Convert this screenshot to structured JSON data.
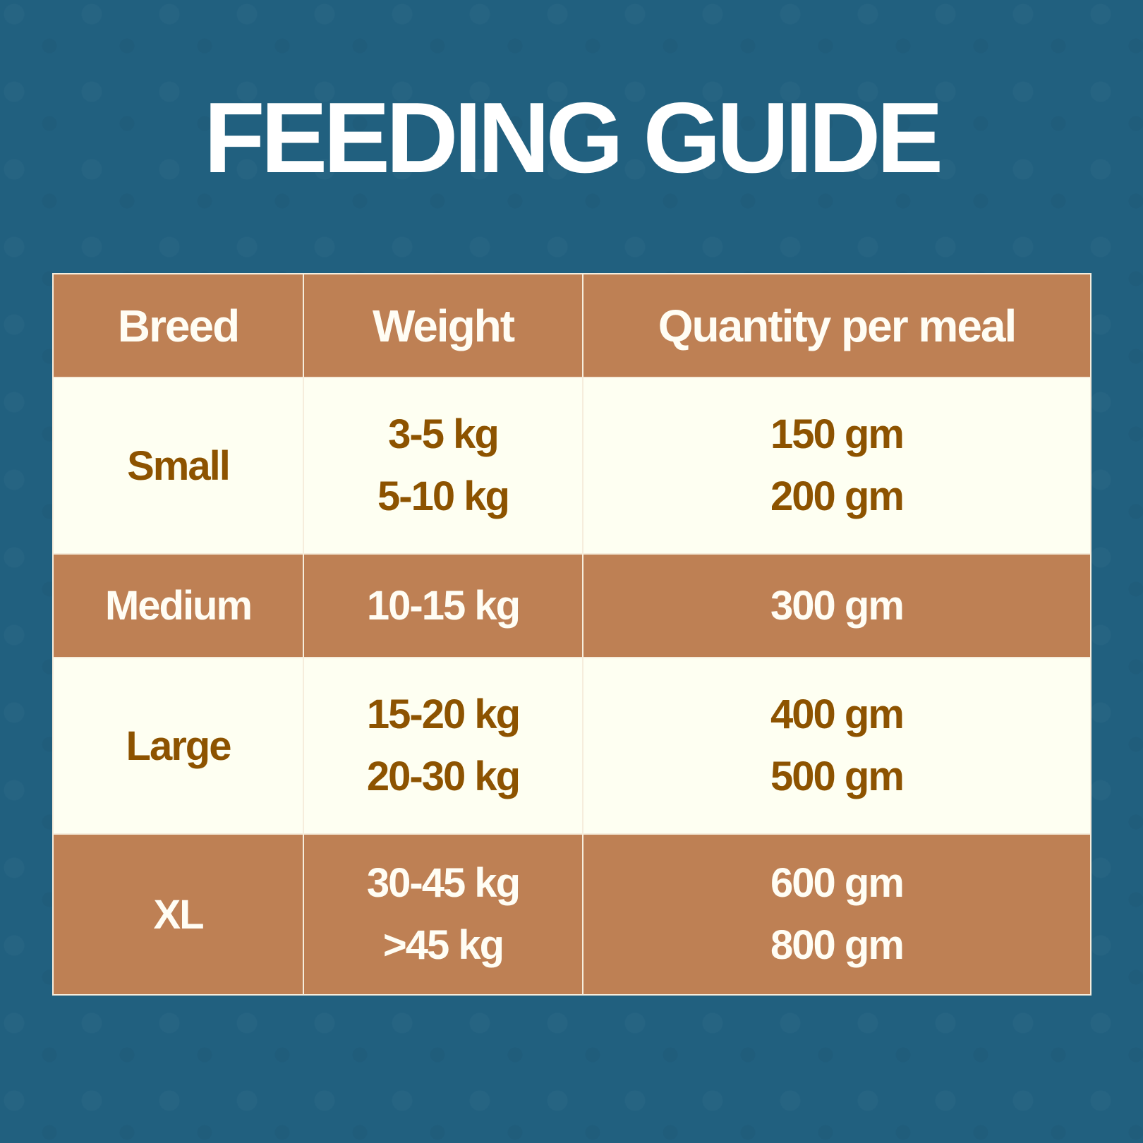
{
  "title": "FEEDING GUIDE",
  "colors": {
    "background": "#21607f",
    "brown_row": "#be8054",
    "cream_row": "#fefff2",
    "brown_text": "#8d5300",
    "white_text": "#fffdf4"
  },
  "table": {
    "headers": [
      "Breed",
      "Weight",
      "Quantity per meal"
    ],
    "rows": [
      {
        "breed": "Small",
        "weights": [
          "3-5 kg",
          "5-10 kg"
        ],
        "quantities": [
          "150 gm",
          "200 gm"
        ]
      },
      {
        "breed": "Medium",
        "weights": [
          "10-15 kg"
        ],
        "quantities": [
          "300 gm"
        ]
      },
      {
        "breed": "Large",
        "weights": [
          "15-20 kg",
          "20-30 kg"
        ],
        "quantities": [
          "400 gm",
          "500 gm"
        ]
      },
      {
        "breed": "XL",
        "weights": [
          "30-45 kg",
          ">45 kg"
        ],
        "quantities": [
          "600 gm",
          "800 gm"
        ]
      }
    ]
  }
}
